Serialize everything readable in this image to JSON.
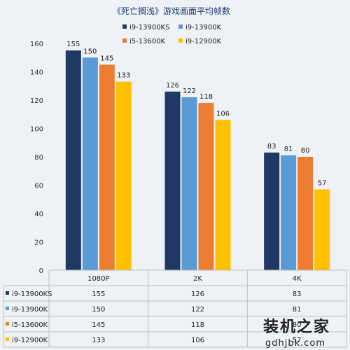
{
  "chart_data": {
    "type": "bar",
    "title": "《死亡搁浅》游戏画面平均帧数",
    "categories": [
      "1080P",
      "2K",
      "4K"
    ],
    "series": [
      {
        "name": "i9-13900KS",
        "color": "#1f3864",
        "values": [
          155,
          126,
          83
        ]
      },
      {
        "name": "i9-13900K",
        "color": "#5b9bd5",
        "values": [
          150,
          122,
          81
        ]
      },
      {
        "name": "i5-13600K",
        "color": "#ed7d31",
        "values": [
          145,
          118,
          80
        ]
      },
      {
        "name": "i9-12900K",
        "color": "#ffc000",
        "values": [
          133,
          106,
          57
        ]
      }
    ],
    "ylim": [
      0,
      160
    ],
    "yticks": [
      0,
      20,
      40,
      60,
      80,
      100,
      120,
      140,
      160
    ],
    "legend": "top-right",
    "grid": false,
    "data_table": true
  },
  "watermark": {
    "main": "装机之家",
    "sub": "gdhjbk.com"
  }
}
